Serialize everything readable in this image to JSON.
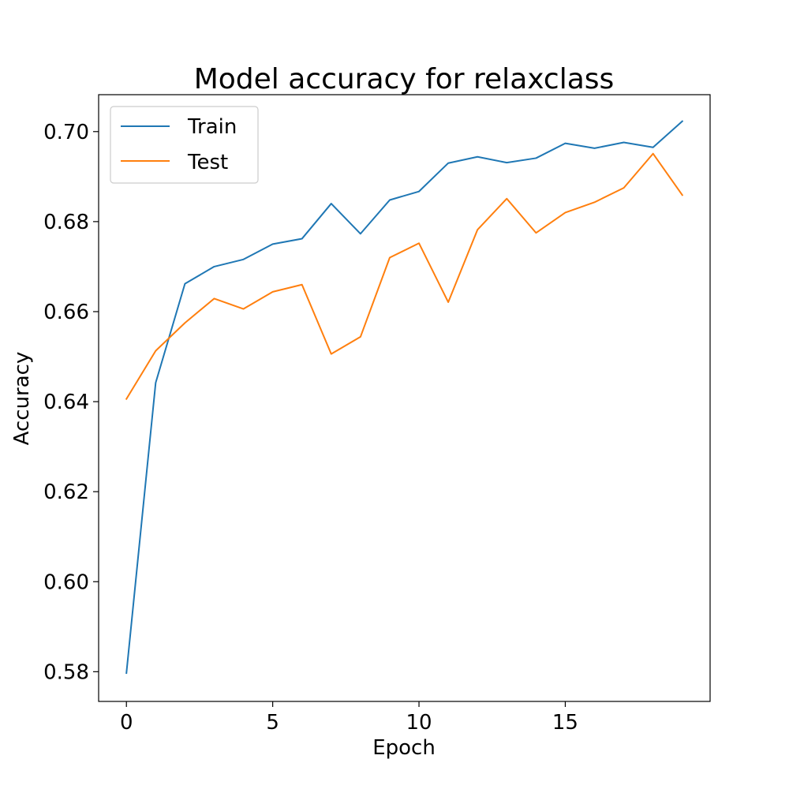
{
  "chart_data": {
    "type": "line",
    "title": "Model accuracy for relaxclass",
    "xlabel": "Epoch",
    "ylabel": "Accuracy",
    "xlim": [
      -0.95,
      19.95
    ],
    "ylim": [
      0.5734,
      0.7082
    ],
    "xticks": [
      0,
      5,
      10,
      15
    ],
    "xtick_labels": [
      "0",
      "5",
      "10",
      "15"
    ],
    "yticks": [
      0.58,
      0.6,
      0.62,
      0.64,
      0.66,
      0.68,
      0.7
    ],
    "ytick_labels": [
      "0.58",
      "0.60",
      "0.62",
      "0.64",
      "0.66",
      "0.68",
      "0.70"
    ],
    "grid": false,
    "legend_position": "top-left",
    "x": [
      0,
      1,
      2,
      3,
      4,
      5,
      6,
      7,
      8,
      9,
      10,
      11,
      12,
      13,
      14,
      15,
      16,
      17,
      18,
      19
    ],
    "series": [
      {
        "name": "Train",
        "color": "#1f77b4",
        "values": [
          0.5797,
          0.6442,
          0.6662,
          0.67,
          0.6716,
          0.675,
          0.6762,
          0.684,
          0.6773,
          0.6848,
          0.6867,
          0.693,
          0.6944,
          0.6931,
          0.6941,
          0.6974,
          0.6963,
          0.6976,
          0.6965,
          0.7023
        ]
      },
      {
        "name": "Test",
        "color": "#ff7f0e",
        "values": [
          0.6406,
          0.6513,
          0.6575,
          0.6629,
          0.6606,
          0.6644,
          0.666,
          0.6506,
          0.6544,
          0.672,
          0.6752,
          0.6621,
          0.6782,
          0.6851,
          0.6775,
          0.682,
          0.6843,
          0.6875,
          0.6951,
          0.6859
        ]
      }
    ]
  }
}
